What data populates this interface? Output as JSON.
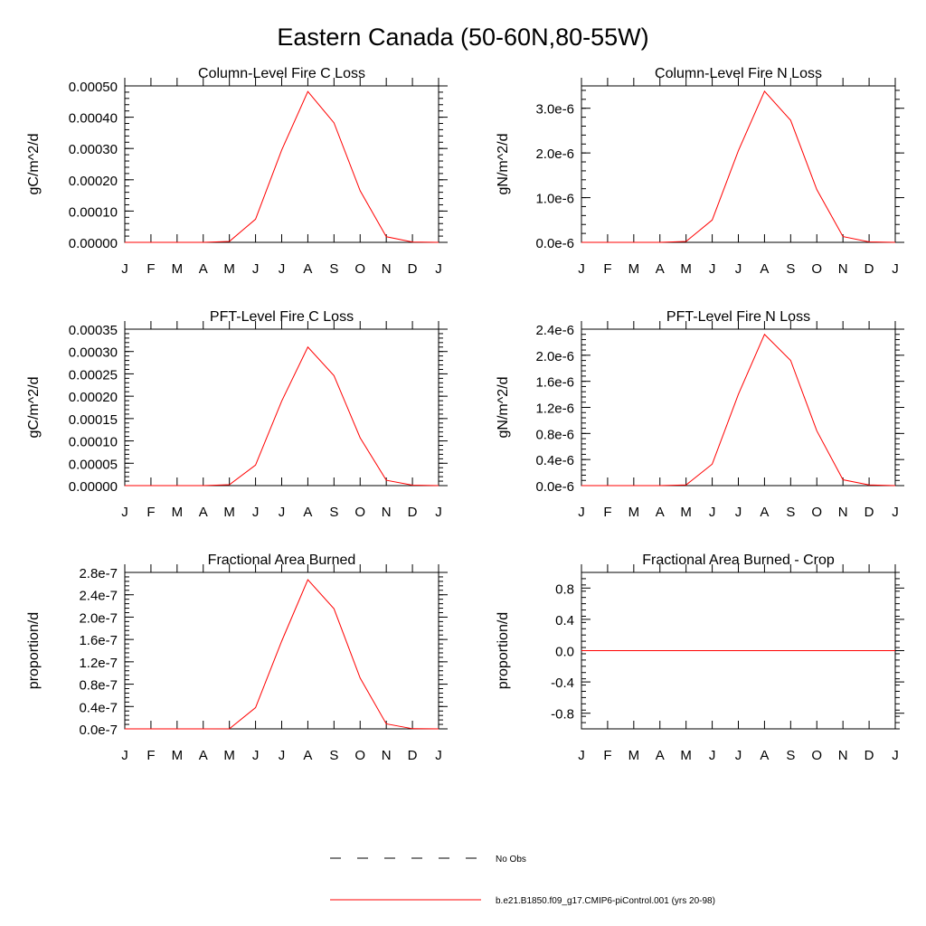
{
  "figure": {
    "title": "Eastern Canada (50-60N,80-55W)"
  },
  "chart_data": [
    {
      "type": "line",
      "title": "Column-Level Fire C Loss",
      "xlabel": "",
      "ylabel": "gC/m^2/d",
      "categories": [
        "J",
        "F",
        "M",
        "A",
        "M",
        "J",
        "J",
        "A",
        "S",
        "O",
        "N",
        "D",
        "J"
      ],
      "ylim": [
        0,
        0.0005
      ],
      "yticks": [
        "0.00000",
        "0.00010",
        "0.00020",
        "0.00030",
        "0.00040",
        "0.00050"
      ],
      "ytick_values": [
        0,
        0.0001,
        0.0002,
        0.0003,
        0.0004,
        0.0005
      ],
      "series": [
        {
          "name": "b.e21.B1850.f09_g17.CMIP6-piControl.001 (yrs 20-98)",
          "color": "#ff0000",
          "values": [
            0,
            0,
            0,
            0,
            3e-06,
            7.4e-05,
            0.000295,
            0.000482,
            0.000382,
            0.000165,
            1.8e-05,
            1e-06,
            0
          ]
        }
      ]
    },
    {
      "type": "line",
      "title": "Column-Level Fire N Loss",
      "xlabel": "",
      "ylabel": "gN/m^2/d",
      "categories": [
        "J",
        "F",
        "M",
        "A",
        "M",
        "J",
        "J",
        "A",
        "S",
        "O",
        "N",
        "D",
        "J"
      ],
      "ylim": [
        0,
        3.5e-06
      ],
      "yticks": [
        "0.0e-6",
        "1.0e-6",
        "2.0e-6",
        "3.0e-6"
      ],
      "ytick_values": [
        0,
        1e-06,
        2e-06,
        3e-06
      ],
      "series": [
        {
          "name": "b.e21.B1850.f09_g17.CMIP6-piControl.001 (yrs 20-98)",
          "color": "#ff0000",
          "values": [
            0,
            0,
            0,
            0,
            2e-08,
            5e-07,
            2.05e-06,
            3.38e-06,
            2.73e-06,
            1.18e-06,
            1.3e-07,
            1e-08,
            0
          ]
        }
      ]
    },
    {
      "type": "line",
      "title": "PFT-Level Fire C Loss",
      "xlabel": "",
      "ylabel": "gC/m^2/d",
      "categories": [
        "J",
        "F",
        "M",
        "A",
        "M",
        "J",
        "J",
        "A",
        "S",
        "O",
        "N",
        "D",
        "J"
      ],
      "ylim": [
        0,
        0.00035
      ],
      "yticks": [
        "0.00000",
        "0.00005",
        "0.00010",
        "0.00015",
        "0.00020",
        "0.00025",
        "0.00030",
        "0.00035"
      ],
      "ytick_values": [
        0,
        5e-05,
        0.0001,
        0.00015,
        0.0002,
        0.00025,
        0.0003,
        0.00035
      ],
      "series": [
        {
          "name": "b.e21.B1850.f09_g17.CMIP6-piControl.001 (yrs 20-98)",
          "color": "#ff0000",
          "values": [
            0,
            0,
            0,
            0,
            2e-06,
            4.6e-05,
            0.000189,
            0.00031,
            0.000246,
            0.000107,
            1.2e-05,
            1e-06,
            0
          ]
        }
      ]
    },
    {
      "type": "line",
      "title": "PFT-Level Fire N Loss",
      "xlabel": "",
      "ylabel": "gN/m^2/d",
      "categories": [
        "J",
        "F",
        "M",
        "A",
        "M",
        "J",
        "J",
        "A",
        "S",
        "O",
        "N",
        "D",
        "J"
      ],
      "ylim": [
        0,
        2.4e-06
      ],
      "yticks": [
        "0.0e-6",
        "0.4e-6",
        "0.8e-6",
        "1.2e-6",
        "1.6e-6",
        "2.0e-6",
        "2.4e-6"
      ],
      "ytick_values": [
        0,
        4e-07,
        8e-07,
        1.2e-06,
        1.6e-06,
        2e-06,
        2.4e-06
      ],
      "series": [
        {
          "name": "b.e21.B1850.f09_g17.CMIP6-piControl.001 (yrs 20-98)",
          "color": "#ff0000",
          "values": [
            0,
            0,
            0,
            0,
            1e-08,
            3.3e-07,
            1.4e-06,
            2.32e-06,
            1.92e-06,
            8.4e-07,
            9e-08,
            1e-08,
            0
          ]
        }
      ]
    },
    {
      "type": "line",
      "title": "Fractional Area Burned",
      "xlabel": "",
      "ylabel": "proportion/d",
      "categories": [
        "J",
        "F",
        "M",
        "A",
        "M",
        "J",
        "J",
        "A",
        "S",
        "O",
        "N",
        "D",
        "J"
      ],
      "ylim": [
        0,
        2.8e-07
      ],
      "yticks": [
        "0.0e-7",
        "0.4e-7",
        "0.8e-7",
        "1.2e-7",
        "1.6e-7",
        "2.0e-7",
        "2.4e-7",
        "2.8e-7"
      ],
      "ytick_values": [
        0,
        4e-08,
        8e-08,
        1.2e-07,
        1.6e-07,
        2e-07,
        2.4e-07,
        2.8e-07
      ],
      "series": [
        {
          "name": "b.e21.B1850.f09_g17.CMIP6-piControl.001 (yrs 20-98)",
          "color": "#ff0000",
          "values": [
            0,
            0,
            0,
            0,
            2e-10,
            3.8e-08,
            1.57e-07,
            2.67e-07,
            2.15e-07,
            9.1e-08,
            9e-09,
            3e-10,
            0
          ]
        }
      ]
    },
    {
      "type": "line",
      "title": "Fractional Area Burned - Crop",
      "xlabel": "",
      "ylabel": "proportion/d",
      "categories": [
        "J",
        "F",
        "M",
        "A",
        "M",
        "J",
        "J",
        "A",
        "S",
        "O",
        "N",
        "D",
        "J"
      ],
      "ylim": [
        -1.0,
        1.0
      ],
      "yticks": [
        "-0.8",
        "-0.4",
        "0.0",
        "0.4",
        "0.8"
      ],
      "ytick_values": [
        -0.8,
        -0.4,
        0,
        0.4,
        0.8
      ],
      "series": [
        {
          "name": "b.e21.B1850.f09_g17.CMIP6-piControl.001 (yrs 20-98)",
          "color": "#ff0000",
          "values": [
            0,
            0,
            0,
            0,
            0,
            0,
            0,
            0,
            0,
            0,
            0,
            0,
            0
          ]
        }
      ]
    }
  ],
  "legend": {
    "items": [
      {
        "label": "No Obs",
        "style": "dashed",
        "color": "#000000"
      },
      {
        "label": "b.e21.B1850.f09_g17.CMIP6-piControl.001 (yrs 20-98)",
        "style": "solid",
        "color": "#ff0000"
      }
    ]
  }
}
